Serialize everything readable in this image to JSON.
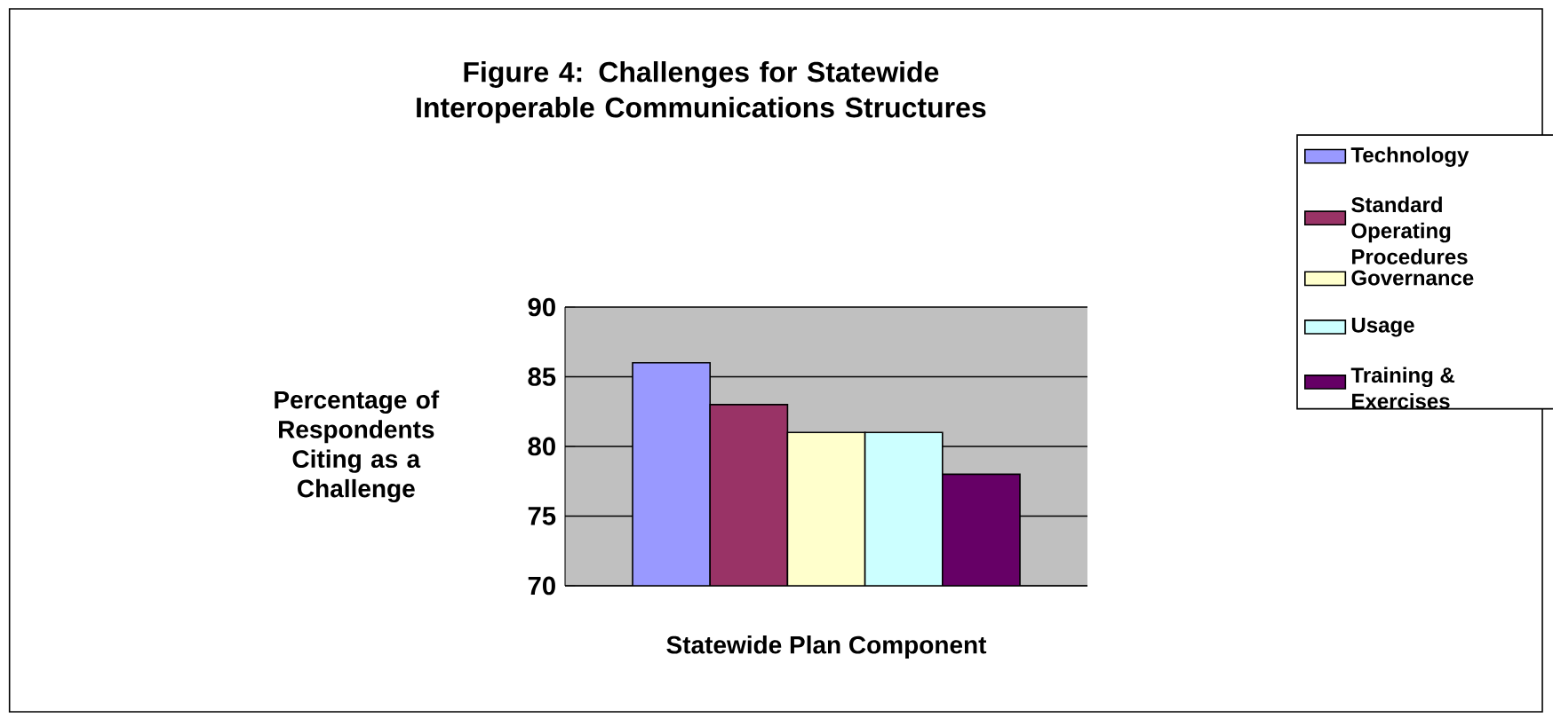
{
  "chart_data": {
    "type": "bar",
    "title": "Figure 4: Challenges for Statewide Interoperable Communications Structures",
    "xlabel": "Statewide Plan Component",
    "ylabel": "Percentage of Respondents Citing as a Challenge",
    "categories": [
      null
    ],
    "series": [
      {
        "name": "Technology",
        "color": "#9999ff",
        "values": [
          86
        ]
      },
      {
        "name": "Standard Operating Procedures",
        "color": "#993366",
        "values": [
          83
        ]
      },
      {
        "name": "Governance",
        "color": "#ffffcc",
        "values": [
          81
        ]
      },
      {
        "name": "Usage",
        "color": "#ccffff",
        "values": [
          81
        ]
      },
      {
        "name": "Training & Exercises",
        "color": "#660066",
        "values": [
          78
        ]
      }
    ],
    "ylim": [
      70,
      90
    ],
    "yticks": [
      70,
      75,
      80,
      85,
      90
    ],
    "grid": "y",
    "legend": "right"
  }
}
